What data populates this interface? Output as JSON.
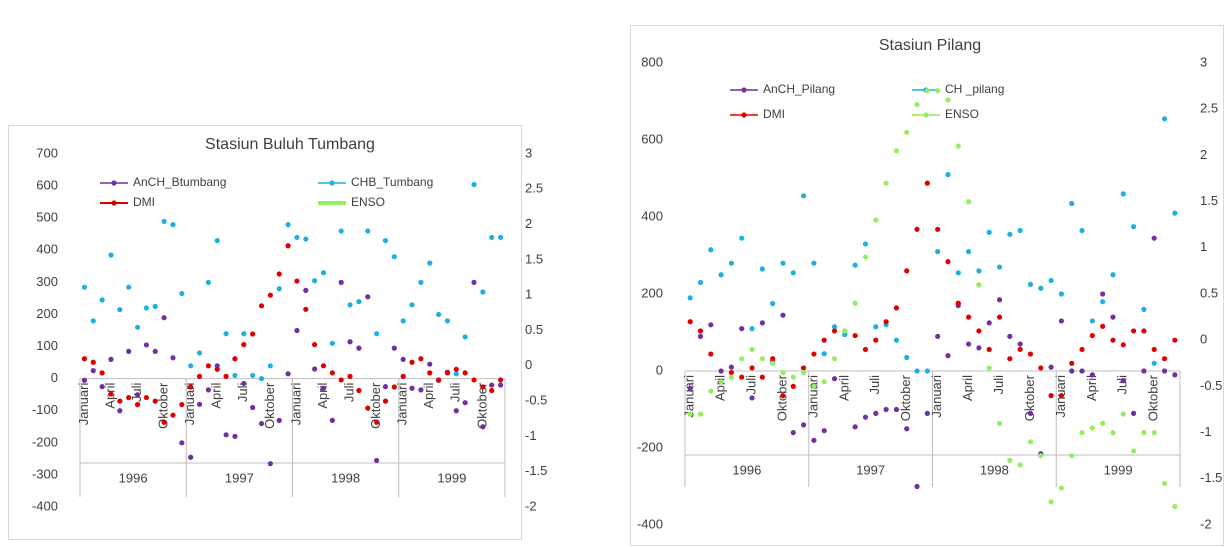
{
  "chart_data": [
    {
      "type": "line",
      "title": "Stasiun Buluh Tumbang",
      "categories": [
        "Januari",
        null,
        null,
        "April",
        null,
        null,
        "Juli",
        null,
        null,
        "Oktober",
        null,
        null,
        "Januari",
        null,
        null,
        "April",
        null,
        null,
        "Juli",
        null,
        null,
        "Oktober",
        null,
        null,
        "Januari",
        null,
        null,
        "April",
        null,
        null,
        "Juli",
        null,
        null,
        "Oktober",
        null,
        null,
        "Januari",
        null,
        null,
        "April",
        null,
        null,
        "Juli",
        null,
        null,
        "Oktober",
        null,
        null
      ],
      "years": [
        1996,
        1997,
        1998,
        1999
      ],
      "ylim": [
        -400,
        700
      ],
      "yticks": [
        -400,
        -300,
        -200,
        -100,
        0,
        100,
        200,
        300,
        400,
        500,
        600,
        700
      ],
      "y2lim": [
        -2,
        3
      ],
      "y2ticks": [
        -2,
        -1.5,
        -1,
        -0.5,
        0,
        0.5,
        1,
        1.5,
        2,
        2.5,
        3
      ],
      "series": [
        {
          "name": "AnCH_Btumbang",
          "color": "#7030a0",
          "marker": true,
          "line_width": 1.5,
          "values": [
            -5,
            25,
            -25,
            60,
            -100,
            85,
            -50,
            105,
            85,
            190,
            65,
            -200,
            -245,
            -80,
            -35,
            40,
            -175,
            -180,
            -15,
            -90,
            -140,
            -265,
            -130,
            15,
            150,
            275,
            30,
            -30,
            -130,
            300,
            115,
            95,
            255,
            -255,
            -25,
            95,
            60,
            -30,
            -35,
            45,
            -5,
            20,
            -100,
            -75,
            300,
            -150,
            -20,
            -20
          ]
        },
        {
          "name": "CHB_Tumbang",
          "color": "#1fb0e0",
          "marker": true,
          "line_width": 1.5,
          "values": [
            285,
            180,
            245,
            385,
            215,
            285,
            160,
            220,
            225,
            490,
            480,
            265,
            40,
            80,
            300,
            430,
            140,
            10,
            140,
            10,
            0,
            40,
            280,
            480,
            440,
            435,
            305,
            330,
            110,
            460,
            230,
            240,
            460,
            140,
            430,
            380,
            180,
            230,
            300,
            360,
            200,
            180,
            15,
            130,
            605,
            270,
            440,
            440
          ]
        },
        {
          "name": "DMI",
          "color": "#e00000",
          "marker": true,
          "line_width": 2,
          "axis": "y2",
          "values": [
            0.1,
            0.05,
            -0.1,
            -0.4,
            -0.5,
            -0.45,
            -0.55,
            -0.45,
            -0.5,
            -0.8,
            -0.7,
            -0.55,
            -0.3,
            -0.15,
            0,
            -0.05,
            -0.15,
            0.1,
            0.3,
            0.45,
            0.85,
            1,
            1.3,
            1.7,
            1.2,
            0.8,
            0.3,
            0,
            -0.1,
            -0.2,
            -0.15,
            -0.35,
            -0.6,
            -0.8,
            -0.5,
            -0.3,
            -0.15,
            0.05,
            0.1,
            -0.1,
            -0.2,
            -0.1,
            -0.05,
            -0.1,
            -0.2,
            -0.3,
            -0.35,
            -0.2
          ]
        },
        {
          "name": "ENSO",
          "color": "#92f060",
          "marker": false,
          "line_width": 4,
          "axis": "y2",
          "values": [
            -0.7,
            -0.9,
            -0.6,
            -0.45,
            -0.4,
            -0.3,
            -0.15,
            -0.3,
            -0.4,
            -0.45,
            -0.5,
            -0.5,
            -0.55,
            -0.35,
            0,
            0.3,
            0.6,
            1,
            1.3,
            1.6,
            1.85,
            2.05,
            2.3,
            2.6,
            2.65,
            2.6,
            2.3,
            1.7,
            0.8,
            -0.2,
            -1,
            -1.35,
            -1.4,
            -1.2,
            -1.4,
            -1.7,
            -1.55,
            -1.35,
            -1,
            -0.9,
            -1.05,
            -0.95,
            -1.1,
            -0.95,
            -1.2,
            -1.4,
            -1.6,
            -1.75
          ]
        }
      ]
    },
    {
      "type": "line",
      "title": "Stasiun Pilang",
      "categories": [
        "Januari",
        null,
        null,
        "April",
        null,
        null,
        "Juli",
        null,
        null,
        "Oktober",
        null,
        null,
        "Januari",
        null,
        null,
        "April",
        null,
        null,
        "Juli",
        null,
        null,
        "Oktober",
        null,
        null,
        "Januari",
        null,
        null,
        "April",
        null,
        null,
        "Juli",
        null,
        null,
        "Oktober",
        null,
        null,
        "Januari",
        null,
        null,
        "April",
        null,
        null,
        "Juli",
        null,
        null,
        "Oktober",
        null,
        null
      ],
      "years": [
        1996,
        1997,
        1998,
        1999
      ],
      "ylim": [
        -400,
        800
      ],
      "yticks": [
        -400,
        -200,
        0,
        200,
        400,
        600,
        800
      ],
      "y2lim": [
        -2,
        3
      ],
      "y2ticks": [
        -2,
        -1.5,
        -1,
        -0.5,
        0,
        0.5,
        1,
        1.5,
        2,
        2.5,
        3
      ],
      "series": [
        {
          "name": "AnCH_Pilang",
          "color": "#7030a0",
          "marker": true,
          "line_width": 1.5,
          "values": [
            -45,
            90,
            120,
            0,
            10,
            110,
            -70,
            125,
            25,
            145,
            -160,
            -140,
            -180,
            -155,
            -20,
            95,
            -145,
            -120,
            -110,
            -100,
            -100,
            -150,
            -300,
            -110,
            90,
            40,
            170,
            70,
            60,
            125,
            185,
            90,
            70,
            -110,
            -215,
            10,
            130,
            0,
            0,
            -10,
            200,
            140,
            -25,
            -110,
            0,
            345,
            0,
            -10
          ]
        },
        {
          "name": "CH _pilang",
          "color": "#1fb0e0",
          "marker": true,
          "line_width": 1.5,
          "values": [
            190,
            230,
            315,
            250,
            280,
            345,
            110,
            265,
            175,
            280,
            255,
            455,
            280,
            45,
            115,
            95,
            275,
            330,
            115,
            120,
            80,
            35,
            0,
            0,
            310,
            510,
            255,
            310,
            260,
            360,
            270,
            355,
            365,
            225,
            215,
            235,
            200,
            435,
            365,
            130,
            180,
            250,
            460,
            375,
            160,
            20,
            655,
            410
          ]
        },
        {
          "name": "DMI",
          "color": "#e00000",
          "marker": true,
          "line_width": 1.5,
          "axis": "y2",
          "values": [
            0.2,
            0.1,
            -0.15,
            -0.45,
            -0.35,
            -0.4,
            -0.3,
            -0.4,
            -0.2,
            -0.6,
            -0.5,
            -0.3,
            -0.15,
            0,
            0.1,
            0.1,
            0.05,
            -0.1,
            0,
            0.2,
            0.35,
            0.75,
            1.2,
            1.7,
            1.2,
            0.85,
            0.4,
            0.25,
            0.1,
            -0.1,
            0.25,
            -0.2,
            -0.1,
            -0.15,
            -0.3,
            -0.6,
            -0.6,
            -0.25,
            -0.1,
            0.05,
            0.15,
            0,
            -0.05,
            0.1,
            0.1,
            -0.1,
            -0.2,
            0
          ]
        },
        {
          "name": "ENSO",
          "color": "#92f060",
          "marker": true,
          "line_width": 1.5,
          "axis": "y2",
          "values": [
            -0.8,
            -0.8,
            -0.55,
            -0.45,
            -0.4,
            -0.2,
            -0.1,
            -0.2,
            -0.25,
            -0.35,
            -0.4,
            -0.35,
            -0.5,
            -0.45,
            -0.2,
            0.1,
            0.4,
            0.9,
            1.3,
            1.7,
            2.05,
            2.25,
            2.55,
            2.7,
            2.7,
            2.6,
            2.1,
            1.5,
            0.6,
            -0.3,
            -0.9,
            -1.3,
            -1.35,
            -1.1,
            -1.25,
            -1.75,
            -1.6,
            -1.25,
            -1,
            -0.95,
            -0.9,
            -1,
            -0.8,
            -1.2,
            -1,
            -1,
            -1.55,
            -1.8
          ]
        }
      ]
    }
  ]
}
